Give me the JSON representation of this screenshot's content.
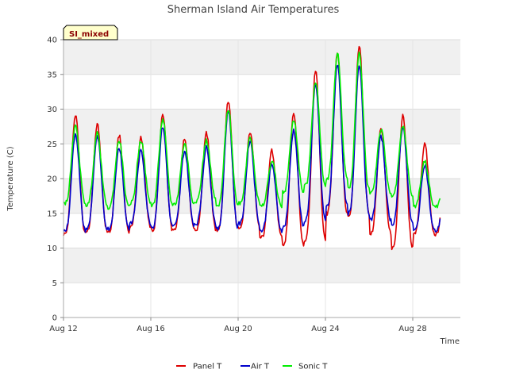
{
  "chart_data": {
    "type": "line",
    "title": "Sherman Island Air Temperatures",
    "xlabel": "Time",
    "ylabel": "Temperature (C)",
    "badge": "SI_mixed",
    "xlim": [
      0,
      18
    ],
    "ylim": [
      0,
      40
    ],
    "yticks": [
      0,
      5,
      10,
      15,
      20,
      25,
      30,
      35,
      40
    ],
    "xticks": [
      {
        "day": 0,
        "label": "Aug 12"
      },
      {
        "day": 4,
        "label": "Aug 16"
      },
      {
        "day": 8,
        "label": "Aug 20"
      },
      {
        "day": 12,
        "label": "Aug 24"
      },
      {
        "day": 16,
        "label": "Aug 28"
      }
    ],
    "grid": true,
    "legend_position": "bottom-center",
    "series": [
      {
        "name": "Panel T",
        "color": "#dd0000",
        "lows": [
          12.0,
          12.5,
          12.3,
          13.0,
          12.5,
          12.6,
          12.5,
          12.5,
          13.0,
          11.5,
          10.5,
          11.0,
          15.0,
          14.8,
          12.0,
          10.0,
          12.0
        ],
        "highs": [
          29.3,
          27.8,
          26.2,
          26.0,
          29.2,
          25.8,
          26.5,
          31.2,
          26.8,
          24.0,
          29.5,
          35.5,
          38.0,
          39.2,
          27.2,
          29.0,
          25.0
        ]
      },
      {
        "name": "Air T",
        "color": "#0000cc",
        "lows": [
          12.5,
          12.8,
          12.8,
          13.5,
          13.0,
          13.2,
          13.5,
          12.7,
          13.5,
          12.5,
          13.0,
          14.0,
          16.0,
          15.0,
          14.0,
          13.5,
          12.5
        ],
        "highs": [
          26.5,
          26.0,
          24.5,
          24.0,
          27.5,
          24.0,
          24.5,
          29.8,
          25.5,
          22.0,
          27.0,
          33.5,
          36.5,
          36.5,
          26.0,
          27.5,
          22.0
        ]
      },
      {
        "name": "Sonic T",
        "color": "#00ee00",
        "lows": [
          16.5,
          16.2,
          15.8,
          16.5,
          16.2,
          16.3,
          16.8,
          16.0,
          16.5,
          16.0,
          18.0,
          19.0,
          20.0,
          18.5,
          18.0,
          17.5,
          16.0
        ],
        "highs": [
          27.5,
          26.5,
          25.5,
          25.5,
          28.5,
          25.0,
          25.5,
          30.0,
          26.0,
          22.5,
          28.5,
          34.0,
          38.0,
          38.0,
          27.0,
          27.5,
          22.5
        ]
      }
    ]
  }
}
